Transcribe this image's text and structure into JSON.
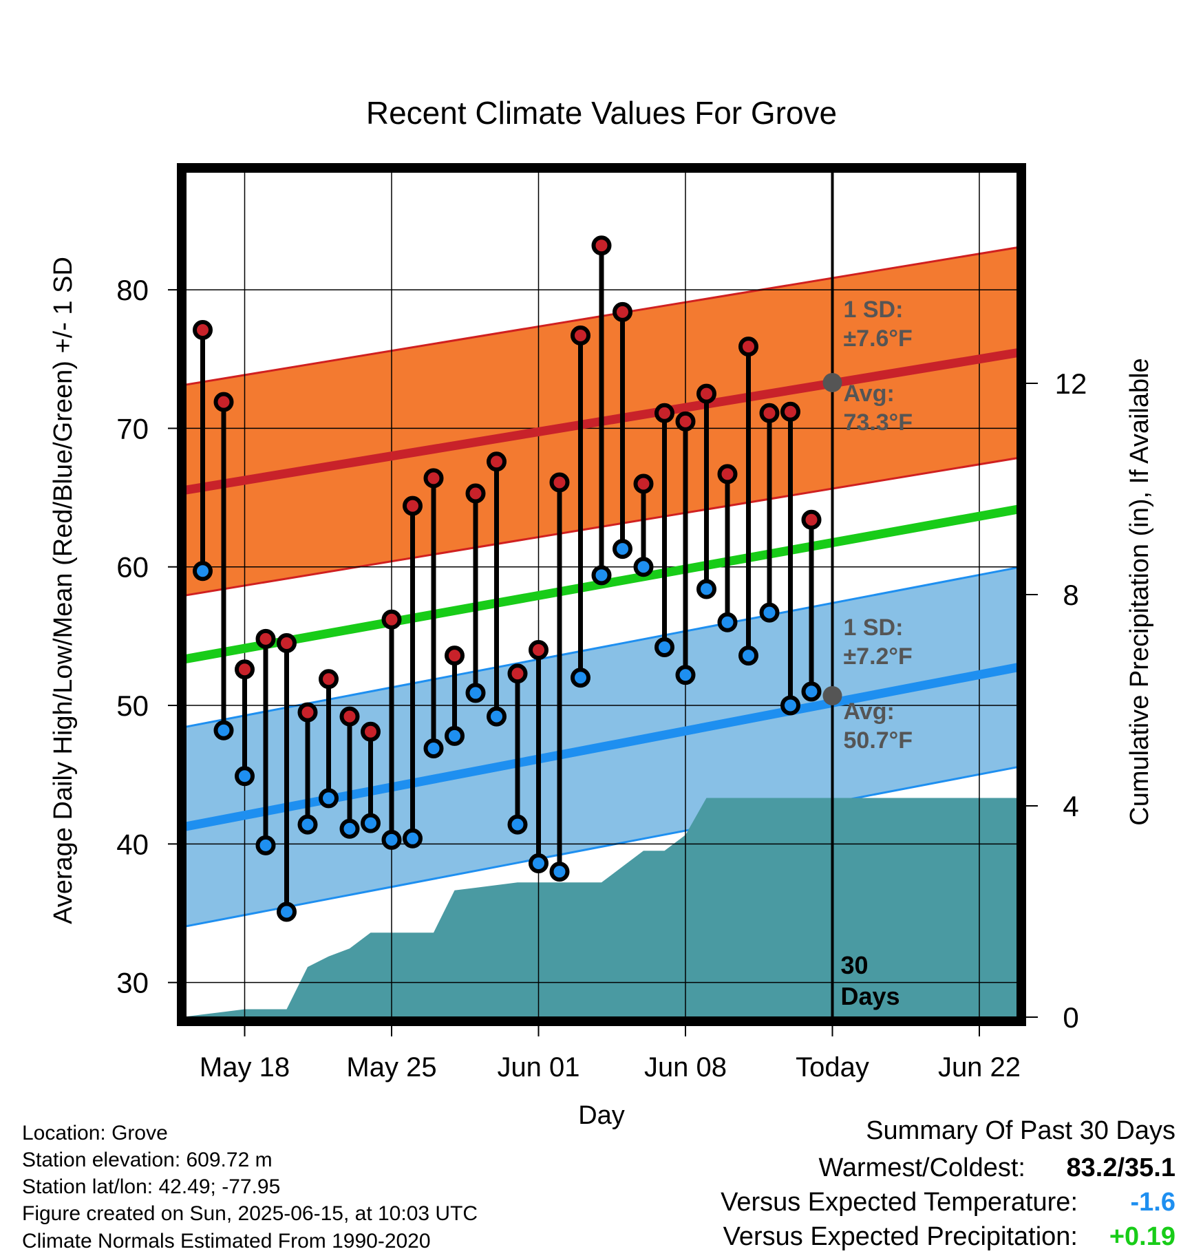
{
  "chart_data": {
    "type": "line",
    "title": "Recent Climate Values For Grove",
    "xlabel": "Day",
    "ylabel": "Average Daily High/Low/Mean (Red/Blue/Green) +/- 1 SD",
    "y2label": "Cumulative Precipitation (in), If Available",
    "x_range_days": [
      "2025-05-15",
      "2025-06-24"
    ],
    "ylim": [
      27.5,
      88.5
    ],
    "y_ticks": [
      30,
      40,
      50,
      60,
      70,
      80
    ],
    "y2lim": [
      0,
      16
    ],
    "y2_ticks": [
      0,
      4,
      8,
      12
    ],
    "x_ticks": [
      {
        "date": "2025-05-18",
        "label": "May 18"
      },
      {
        "date": "2025-05-25",
        "label": "May 25"
      },
      {
        "date": "2025-06-01",
        "label": "Jun 01"
      },
      {
        "date": "2025-06-08",
        "label": "Jun 08"
      },
      {
        "date": "2025-06-15",
        "label": "Today"
      },
      {
        "date": "2025-06-22",
        "label": "Jun 22"
      }
    ],
    "grid": true,
    "today": "2025-06-15",
    "today_label": "30 Days",
    "daily_observations": {
      "dates": [
        "2025-05-16",
        "2025-05-17",
        "2025-05-18",
        "2025-05-19",
        "2025-05-20",
        "2025-05-21",
        "2025-05-22",
        "2025-05-23",
        "2025-05-24",
        "2025-05-25",
        "2025-05-26",
        "2025-05-27",
        "2025-05-28",
        "2025-05-29",
        "2025-05-30",
        "2025-05-31",
        "2025-06-01",
        "2025-06-02",
        "2025-06-03",
        "2025-06-04",
        "2025-06-05",
        "2025-06-06",
        "2025-06-07",
        "2025-06-08",
        "2025-06-09",
        "2025-06-10",
        "2025-06-11",
        "2025-06-12",
        "2025-06-13",
        "2025-06-14"
      ],
      "high": [
        77.1,
        71.9,
        52.6,
        54.8,
        54.5,
        49.5,
        51.9,
        49.2,
        48.1,
        56.2,
        64.4,
        66.4,
        53.6,
        65.3,
        67.6,
        52.3,
        54.0,
        66.1,
        76.7,
        83.2,
        78.4,
        66.0,
        71.1,
        70.5,
        72.5,
        66.7,
        75.9,
        71.1,
        71.2,
        63.4
      ],
      "low": [
        59.7,
        48.2,
        44.9,
        39.9,
        35.1,
        41.4,
        43.3,
        41.1,
        41.5,
        40.3,
        40.4,
        46.9,
        47.8,
        50.9,
        49.2,
        41.4,
        38.6,
        38.0,
        52.0,
        59.4,
        61.3,
        60.0,
        54.2,
        52.2,
        58.4,
        56.0,
        53.6,
        56.7,
        50.0,
        51.0
      ]
    },
    "normals": {
      "dates": [
        "2025-05-15",
        "2025-06-24"
      ],
      "avg_high_start": 65.5,
      "avg_high_end": 75.5,
      "avg_low_start": 41.2,
      "avg_low_end": 52.8,
      "avg_mean_start": 53.3,
      "avg_mean_end": 64.2
    },
    "sd_high": 7.6,
    "sd_low": 7.2,
    "annotations": {
      "high_sd": {
        "line1": "1 SD:",
        "line2": "±7.6°F"
      },
      "high_avg": {
        "line1": "Avg:",
        "line2": "73.3°F",
        "value": 73.3
      },
      "low_sd": {
        "line1": "1 SD:",
        "line2": "±7.2°F"
      },
      "low_avg": {
        "line1": "Avg:",
        "line2": "50.7°F",
        "value": 50.7
      }
    },
    "precipitation_cumulative": {
      "dates": [
        "2025-05-15",
        "2025-05-16",
        "2025-05-17",
        "2025-05-18",
        "2025-05-19",
        "2025-05-20",
        "2025-05-21",
        "2025-05-22",
        "2025-05-23",
        "2025-05-24",
        "2025-05-25",
        "2025-05-26",
        "2025-05-27",
        "2025-05-28",
        "2025-05-29",
        "2025-05-30",
        "2025-05-31",
        "2025-06-01",
        "2025-06-02",
        "2025-06-03",
        "2025-06-04",
        "2025-06-05",
        "2025-06-06",
        "2025-06-07",
        "2025-06-08",
        "2025-06-09",
        "2025-06-10",
        "2025-06-11",
        "2025-06-12",
        "2025-06-13",
        "2025-06-14",
        "2025-06-15",
        "2025-06-24"
      ],
      "values": [
        0.0,
        0.05,
        0.1,
        0.15,
        0.15,
        0.15,
        0.95,
        1.15,
        1.3,
        1.6,
        1.6,
        1.6,
        1.6,
        2.4,
        2.45,
        2.5,
        2.55,
        2.55,
        2.55,
        2.55,
        2.55,
        2.85,
        3.15,
        3.15,
        3.45,
        4.15,
        4.15,
        4.15,
        4.15,
        4.15,
        4.15,
        4.15,
        4.15
      ]
    },
    "colors": {
      "high": "#c8222a",
      "low": "#1e8ff0",
      "mean": "#18cc18",
      "high_band": "#f37a30",
      "low_band": "#88c0e6",
      "precip": "#4a9aa2",
      "annotation": "#555555"
    }
  },
  "info": {
    "location": "Location: Grove",
    "elevation": "Station elevation: 609.72 m",
    "latlon": "Station lat/lon: 42.49; -77.95",
    "created": "Figure created on Sun, 2025-06-15, at 10:03 UTC",
    "normals": "Climate Normals Estimated From 1990-2020"
  },
  "summary": {
    "title": "Summary Of Past 30 Days",
    "warm_cold_label": "Warmest/Coldest:",
    "warm_cold_value": "83.2/35.1",
    "temp_label": "Versus Expected Temperature:",
    "temp_value": "-1.6",
    "temp_color": "#1e8ff0",
    "precip_label": "Versus Expected Precipitation:",
    "precip_value": "+0.19",
    "precip_color": "#18cc18"
  }
}
